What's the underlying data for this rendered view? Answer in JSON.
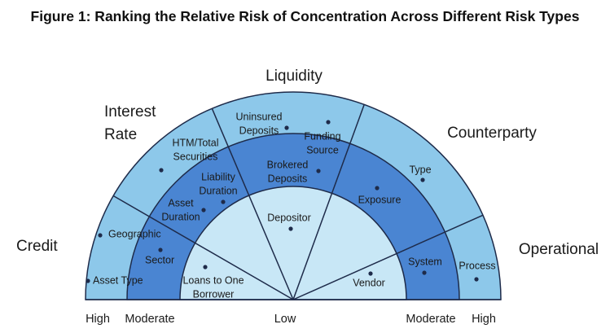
{
  "title": "Figure 1: Ranking the Relative Risk of Concentration Across Different Risk Types",
  "categories": [
    {
      "lines": [
        "Credit"
      ]
    },
    {
      "lines": [
        "Interest",
        "Rate"
      ]
    },
    {
      "lines": [
        "Liquidity"
      ]
    },
    {
      "lines": [
        "Counterparty"
      ]
    },
    {
      "lines": [
        "Operational"
      ]
    }
  ],
  "scale": [
    "High",
    "Moderate",
    "Low",
    "Moderate",
    "High"
  ],
  "items": [
    {
      "lines": [
        "Geographic"
      ]
    },
    {
      "lines": [
        "Asset Type"
      ]
    },
    {
      "lines": [
        "Sector"
      ]
    },
    {
      "lines": [
        "HTM/Total",
        "Securities"
      ]
    },
    {
      "lines": [
        "Liability",
        "Duration"
      ]
    },
    {
      "lines": [
        "Asset",
        "Duration"
      ]
    },
    {
      "lines": [
        "Uninsured",
        "Deposits"
      ]
    },
    {
      "lines": [
        "Funding",
        "Source"
      ]
    },
    {
      "lines": [
        "Brokered",
        "Deposits"
      ]
    },
    {
      "lines": [
        "Depositor"
      ]
    },
    {
      "lines": [
        "Exposure"
      ]
    },
    {
      "lines": [
        "Type"
      ]
    },
    {
      "lines": [
        "Loans to One",
        "Borrower"
      ]
    },
    {
      "lines": [
        "Vendor"
      ]
    },
    {
      "lines": [
        "System"
      ]
    },
    {
      "lines": [
        "Process"
      ]
    }
  ]
}
